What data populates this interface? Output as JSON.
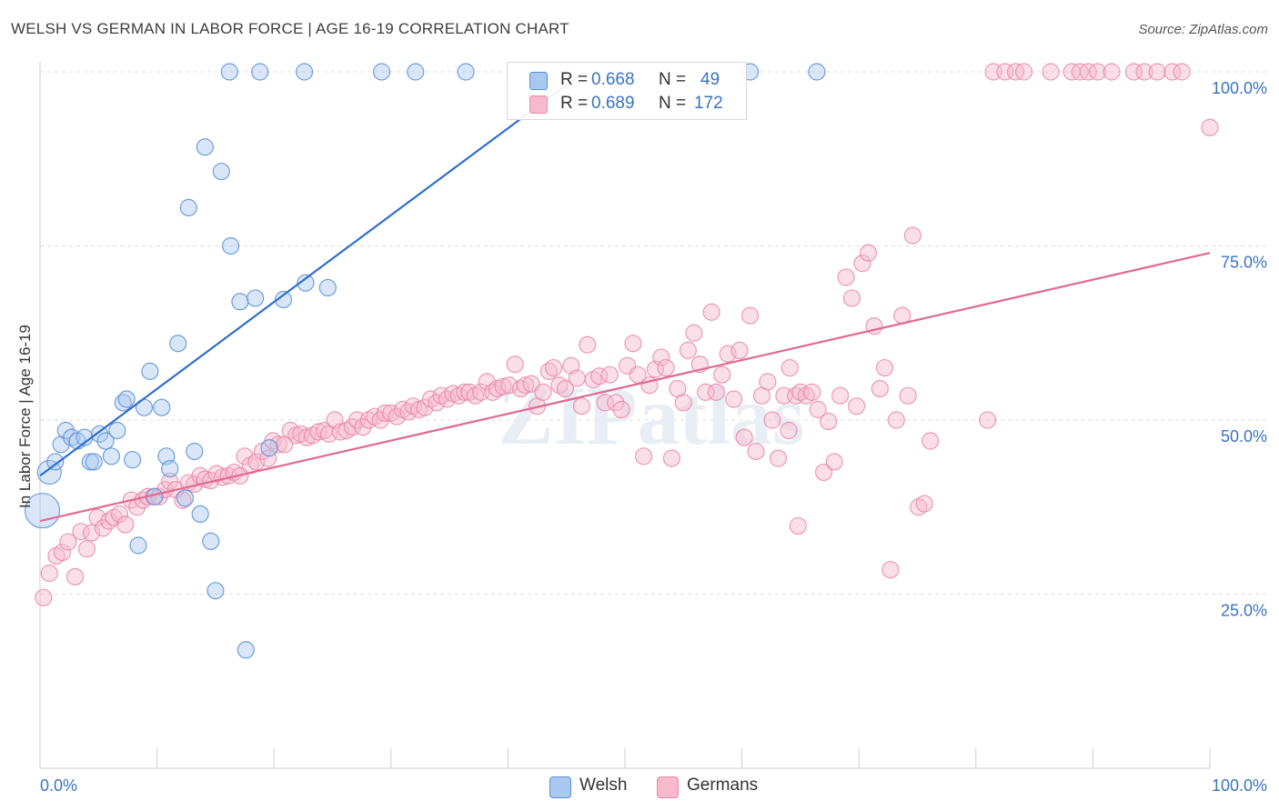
{
  "title": "WELSH VS GERMAN IN LABOR FORCE | AGE 16-19 CORRELATION CHART",
  "source": "Source: ZipAtlas.com",
  "watermark": "ZIPatlas",
  "legend": {
    "welsh": {
      "r_label": "R =",
      "r_value": "0.668",
      "n_label": "N =",
      "n_value": "49"
    },
    "germans": {
      "r_label": "R =",
      "r_value": "0.689",
      "n_label": "N =",
      "n_value": "172"
    }
  },
  "bottom_legend": {
    "welsh": "Welsh",
    "germans": "Germans"
  },
  "colors": {
    "welsh_fill": "#a9c8f0",
    "welsh_stroke": "#5b8fd6",
    "welsh_line": "#2f6fce",
    "germans_fill": "#f7b9cc",
    "germans_stroke": "#e88aa8",
    "germans_line": "#e06a93",
    "grid": "#dcdcdc",
    "axis_text": "#3a73c4"
  },
  "chart_data": {
    "type": "scatter",
    "title": "WELSH VS GERMAN IN LABOR FORCE | AGE 16-19 CORRELATION CHART",
    "xlabel": "",
    "ylabel": "In Labor Force | Age 16-19",
    "xlim": [
      0,
      100
    ],
    "ylim": [
      0,
      100
    ],
    "x_tick_labels": [
      "0.0%",
      "100.0%"
    ],
    "y_tick_labels": [
      "25.0%",
      "50.0%",
      "75.0%",
      "100.0%"
    ],
    "y_ticks": [
      25,
      50,
      75,
      100
    ],
    "series": [
      {
        "name": "Welsh",
        "r": 0.668,
        "n": 49,
        "trend": {
          "x0": 0,
          "y0": 42,
          "x1": 46.5,
          "y1": 100
        },
        "points": [
          [
            0.2,
            37,
            3
          ],
          [
            0.8,
            42.5,
            2
          ],
          [
            1.3,
            44,
            1
          ],
          [
            1.8,
            46.5,
            1
          ],
          [
            2.2,
            48.5,
            1
          ],
          [
            2.7,
            47.5,
            1
          ],
          [
            3.2,
            47,
            1
          ],
          [
            3.8,
            47.5,
            1
          ],
          [
            4.3,
            44,
            1
          ],
          [
            4.6,
            44,
            1
          ],
          [
            5.1,
            48,
            1
          ],
          [
            5.6,
            47,
            1
          ],
          [
            6.1,
            44.8,
            1
          ],
          [
            6.6,
            48.5,
            1
          ],
          [
            7.1,
            52.5,
            1
          ],
          [
            7.4,
            53,
            1
          ],
          [
            7.9,
            44.3,
            1
          ],
          [
            8.4,
            32,
            1
          ],
          [
            8.9,
            51.8,
            1
          ],
          [
            9.4,
            57,
            1
          ],
          [
            9.8,
            39,
            1
          ],
          [
            10.4,
            51.8,
            1
          ],
          [
            10.8,
            44.8,
            1
          ],
          [
            11.1,
            43,
            1
          ],
          [
            11.8,
            61,
            1
          ],
          [
            12.4,
            38.8,
            1
          ],
          [
            12.7,
            80.5,
            1
          ],
          [
            13.2,
            45.5,
            1
          ],
          [
            13.7,
            36.5,
            1
          ],
          [
            14.1,
            89.2,
            1
          ],
          [
            14.6,
            32.6,
            1
          ],
          [
            15.0,
            25.5,
            1
          ],
          [
            15.5,
            85.7,
            1
          ],
          [
            16.3,
            75,
            1
          ],
          [
            17.1,
            67,
            1
          ],
          [
            17.6,
            17,
            1
          ],
          [
            18.4,
            67.5,
            1
          ],
          [
            19.6,
            46,
            1
          ],
          [
            20.8,
            67.3,
            1
          ],
          [
            22.7,
            69.7,
            1
          ],
          [
            24.6,
            69,
            1
          ],
          [
            16.2,
            100,
            1
          ],
          [
            18.8,
            100,
            1
          ],
          [
            22.6,
            100,
            1
          ],
          [
            29.2,
            100,
            1
          ],
          [
            32.1,
            100,
            1
          ],
          [
            36.4,
            100,
            1
          ],
          [
            60.7,
            100,
            1
          ],
          [
            66.4,
            100,
            1
          ]
        ]
      },
      {
        "name": "Germans",
        "r": 0.689,
        "n": 172,
        "trend": {
          "x0": 0,
          "y0": 35.5,
          "x1": 100,
          "y1": 74
        },
        "points": [
          [
            0.3,
            24.5,
            1
          ],
          [
            0.8,
            28,
            1
          ],
          [
            1.4,
            30.5,
            1
          ],
          [
            1.9,
            31,
            1
          ],
          [
            2.4,
            32.5,
            1
          ],
          [
            3.0,
            27.5,
            1
          ],
          [
            3.5,
            34,
            1
          ],
          [
            4.0,
            31.5,
            1
          ],
          [
            4.4,
            33.8,
            1
          ],
          [
            4.9,
            36,
            1
          ],
          [
            5.4,
            34.5,
            1
          ],
          [
            5.9,
            35.5,
            1
          ],
          [
            6.3,
            36,
            1
          ],
          [
            6.8,
            36.5,
            1
          ],
          [
            7.3,
            35,
            1
          ],
          [
            7.8,
            38.5,
            1
          ],
          [
            8.3,
            37.5,
            1
          ],
          [
            8.8,
            38.5,
            1
          ],
          [
            9.2,
            39,
            1
          ],
          [
            9.7,
            39,
            1
          ],
          [
            10.2,
            39,
            1
          ],
          [
            10.7,
            40,
            1
          ],
          [
            11.1,
            41.2,
            1
          ],
          [
            11.6,
            40,
            1
          ],
          [
            12.2,
            38.5,
            1
          ],
          [
            12.7,
            41,
            1
          ],
          [
            13.2,
            40.8,
            1
          ],
          [
            13.7,
            42,
            1
          ],
          [
            14.1,
            41.5,
            1
          ],
          [
            14.6,
            41.3,
            1
          ],
          [
            15.1,
            42.3,
            1
          ],
          [
            15.6,
            41.8,
            1
          ],
          [
            16.1,
            42,
            1
          ],
          [
            16.6,
            42.5,
            1
          ],
          [
            17.1,
            42,
            1
          ],
          [
            17.5,
            44.8,
            1
          ],
          [
            18.0,
            43.5,
            1
          ],
          [
            18.5,
            44,
            1
          ],
          [
            19.0,
            45.5,
            1
          ],
          [
            19.5,
            44.5,
            1
          ],
          [
            19.9,
            47,
            1
          ],
          [
            20.4,
            46.5,
            1
          ],
          [
            20.9,
            46.5,
            1
          ],
          [
            21.4,
            48.5,
            1
          ],
          [
            21.9,
            47.8,
            1
          ],
          [
            22.3,
            48,
            1
          ],
          [
            22.8,
            47.5,
            1
          ],
          [
            23.3,
            47.8,
            1
          ],
          [
            23.8,
            48.3,
            1
          ],
          [
            24.3,
            48.5,
            1
          ],
          [
            24.7,
            48,
            1
          ],
          [
            25.2,
            50,
            1
          ],
          [
            25.7,
            48.3,
            1
          ],
          [
            26.2,
            48.5,
            1
          ],
          [
            26.7,
            49,
            1
          ],
          [
            27.1,
            50,
            1
          ],
          [
            27.6,
            49,
            1
          ],
          [
            28.1,
            50,
            1
          ],
          [
            28.6,
            50.5,
            1
          ],
          [
            29.1,
            50,
            1
          ],
          [
            29.5,
            51,
            1
          ],
          [
            30.0,
            51,
            1
          ],
          [
            30.5,
            50.5,
            1
          ],
          [
            31.0,
            51.5,
            1
          ],
          [
            31.5,
            51.2,
            1
          ],
          [
            31.9,
            52,
            1
          ],
          [
            32.4,
            51.5,
            1
          ],
          [
            32.9,
            51.8,
            1
          ],
          [
            33.4,
            53,
            1
          ],
          [
            33.9,
            52.5,
            1
          ],
          [
            34.3,
            53.5,
            1
          ],
          [
            34.8,
            53,
            1
          ],
          [
            35.3,
            53.8,
            1
          ],
          [
            35.8,
            53.5,
            1
          ],
          [
            36.3,
            54,
            1
          ],
          [
            36.7,
            54,
            1
          ],
          [
            37.2,
            53.5,
            1
          ],
          [
            37.7,
            54,
            1
          ],
          [
            38.2,
            55.5,
            1
          ],
          [
            38.7,
            54,
            1
          ],
          [
            39.1,
            54.5,
            1
          ],
          [
            39.6,
            54.8,
            1
          ],
          [
            40.1,
            55,
            1
          ],
          [
            40.6,
            58,
            1
          ],
          [
            41.1,
            54.5,
            1
          ],
          [
            41.5,
            55,
            1
          ],
          [
            42.0,
            55.2,
            1
          ],
          [
            42.5,
            52,
            1
          ],
          [
            43.0,
            54,
            1
          ],
          [
            43.5,
            57,
            1
          ],
          [
            43.9,
            57.5,
            1
          ],
          [
            44.4,
            55,
            1
          ],
          [
            44.9,
            54.5,
            1
          ],
          [
            45.4,
            57.8,
            1
          ],
          [
            45.9,
            56,
            1
          ],
          [
            46.3,
            52,
            1
          ],
          [
            46.8,
            60.8,
            1
          ],
          [
            47.3,
            55.8,
            1
          ],
          [
            47.8,
            56.3,
            1
          ],
          [
            48.3,
            52.5,
            1
          ],
          [
            48.7,
            56.5,
            1
          ],
          [
            49.2,
            52.5,
            1
          ],
          [
            49.7,
            51.5,
            1
          ],
          [
            50.2,
            57.8,
            1
          ],
          [
            50.7,
            61,
            1
          ],
          [
            51.1,
            56.5,
            1
          ],
          [
            51.6,
            44.8,
            1
          ],
          [
            52.1,
            55,
            1
          ],
          [
            52.6,
            57.3,
            1
          ],
          [
            53.1,
            59,
            1
          ],
          [
            53.5,
            57.5,
            1
          ],
          [
            54.0,
            44.5,
            1
          ],
          [
            54.5,
            54.5,
            1
          ],
          [
            55.0,
            52.5,
            1
          ],
          [
            55.4,
            60,
            1
          ],
          [
            55.9,
            62.5,
            1
          ],
          [
            56.4,
            58,
            1
          ],
          [
            56.9,
            54,
            1
          ],
          [
            57.4,
            65.5,
            1
          ],
          [
            57.8,
            54,
            1
          ],
          [
            58.3,
            56.5,
            1
          ],
          [
            58.8,
            59.5,
            1
          ],
          [
            59.3,
            53,
            1
          ],
          [
            59.8,
            60,
            1
          ],
          [
            60.2,
            47.5,
            1
          ],
          [
            60.7,
            65,
            1
          ],
          [
            61.2,
            45.5,
            1
          ],
          [
            61.7,
            53.5,
            1
          ],
          [
            62.2,
            55.5,
            1
          ],
          [
            62.6,
            50,
            1
          ],
          [
            63.1,
            44.5,
            1
          ],
          [
            63.6,
            53.5,
            1
          ],
          [
            64.1,
            57.5,
            1
          ],
          [
            64.6,
            53.5,
            1
          ],
          [
            65.0,
            54,
            1
          ],
          [
            65.5,
            53.5,
            1
          ],
          [
            66.0,
            54,
            1
          ],
          [
            66.5,
            51.5,
            1
          ],
          [
            67.0,
            42.5,
            1
          ],
          [
            67.4,
            49.8,
            1
          ],
          [
            67.9,
            44,
            1
          ],
          [
            68.4,
            53.5,
            1
          ],
          [
            68.9,
            70.5,
            1
          ],
          [
            69.4,
            67.5,
            1
          ],
          [
            69.8,
            52,
            1
          ],
          [
            70.3,
            72.5,
            1
          ],
          [
            70.8,
            74,
            1
          ],
          [
            71.3,
            63.5,
            1
          ],
          [
            71.8,
            54.5,
            1
          ],
          [
            72.2,
            57.5,
            1
          ],
          [
            72.7,
            28.5,
            1
          ],
          [
            73.2,
            50,
            1
          ],
          [
            73.7,
            65,
            1
          ],
          [
            74.2,
            53.5,
            1
          ],
          [
            74.6,
            76.5,
            1
          ],
          [
            75.1,
            37.5,
            1
          ],
          [
            75.6,
            38,
            1
          ],
          [
            76.1,
            47,
            1
          ],
          [
            64.8,
            34.8,
            1
          ],
          [
            64.0,
            48.5,
            1
          ],
          [
            81.0,
            50,
            1
          ],
          [
            100.0,
            92,
            1
          ],
          [
            81.5,
            100,
            1
          ],
          [
            82.5,
            100,
            1
          ],
          [
            83.4,
            100,
            1
          ],
          [
            84.1,
            100,
            1
          ],
          [
            86.4,
            100,
            1
          ],
          [
            88.2,
            100,
            1
          ],
          [
            88.9,
            100,
            1
          ],
          [
            89.6,
            100,
            1
          ],
          [
            90.4,
            100,
            1
          ],
          [
            91.6,
            100,
            1
          ],
          [
            93.5,
            100,
            1
          ],
          [
            94.4,
            100,
            1
          ],
          [
            95.5,
            100,
            1
          ],
          [
            96.8,
            100,
            1
          ],
          [
            97.6,
            100,
            1
          ]
        ]
      }
    ]
  }
}
